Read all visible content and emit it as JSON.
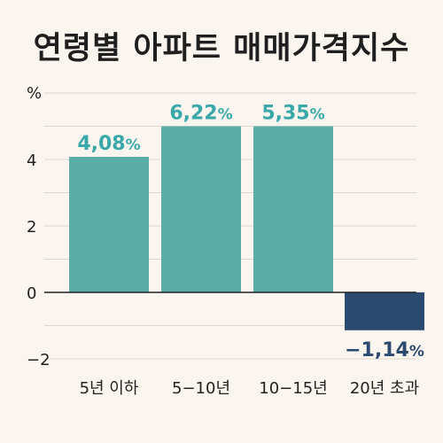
{
  "chart_data": {
    "type": "bar",
    "title": "연령별 아파트 매매가격지수",
    "ylabel": "%",
    "categories": [
      "5년 이하",
      "5−10년",
      "10−15년",
      "20년 초과"
    ],
    "values": [
      4.08,
      6.22,
      5.35,
      -1.14
    ],
    "value_labels": [
      "4,08",
      "6,22",
      "5,35",
      "−1,14"
    ],
    "value_unit": "%",
    "yticks": [
      "4",
      "2",
      "0",
      "−2"
    ],
    "ylim": [
      -2.7,
      6.2
    ],
    "grid": true,
    "colors": {
      "positive": "#5aada6",
      "negative": "#2b4a6f",
      "positive_label": "#3aa8a8",
      "negative_label": "#2b4a6f",
      "grid": "#ddd6cc",
      "zero_line": "#222222"
    }
  }
}
